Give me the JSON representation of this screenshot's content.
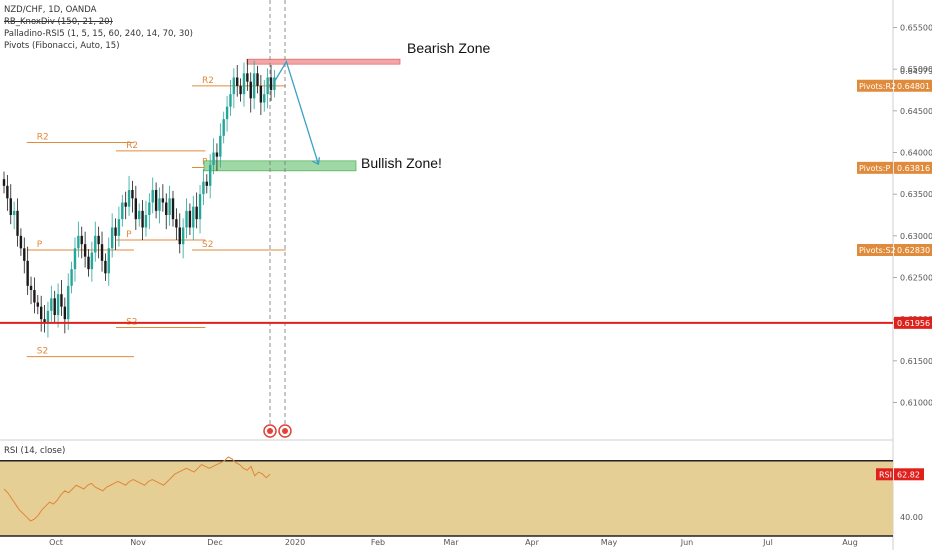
{
  "legend": {
    "symbol": "NZD/CHF, 1D, OANDA",
    "indicator1": "RB_KnoxDiv (150, 21, 20)",
    "indicator2": "Palladino-RSI5 (1, 5, 15, 60, 240, 14, 70, 30)",
    "indicator3": "Pivots (Fibonacci, Auto, 15)"
  },
  "rsi_legend": "RSI (14, close)",
  "annotations": {
    "bearish": "Bearish Zone",
    "bullish": "Bullish Zone!"
  },
  "colors": {
    "up": "#26a69a",
    "down": "#1a1a1a",
    "pivot": "#e08a3c",
    "red_line": "#e0201a",
    "arrow": "#3aa0c8",
    "bear_zone": "#f4a6a6",
    "bull_zone": "#9fd8a4",
    "rsi_band": "#e6cf95",
    "rsi_line": "#e0863a"
  },
  "chart_data": [
    {
      "type": "candlestick",
      "title": "NZD/CHF, 1D, OANDA",
      "x_ticks": [
        "Oct",
        "Nov",
        "Dec",
        "2020",
        "Feb",
        "Mar",
        "Apr",
        "May",
        "Jun",
        "Jul",
        "Aug"
      ],
      "y_ticks": [
        "0.65500",
        "0.65000",
        "0.64500",
        "0.64000",
        "0.63500",
        "0.63000",
        "0.62500",
        "0.62000",
        "0.61500",
        "0.61000"
      ],
      "ylim": [
        0.6055,
        0.6583
      ],
      "price_labels": [
        {
          "label": "0.64979",
          "value": 0.64979
        },
        {
          "label": "Pivots:R2",
          "text": "0.64801",
          "value": 0.64801
        },
        {
          "label": "Pivots:P",
          "text": "0.63816",
          "value": 0.63816
        },
        {
          "label": "Pivots:S2",
          "text": "0.62830",
          "value": 0.6283
        },
        {
          "label": "",
          "text": "0.61956",
          "value": 0.61956
        }
      ],
      "pivot_levels": [
        {
          "label": "R2",
          "value": 0.6412,
          "from": 0.03,
          "to": 0.15
        },
        {
          "label": "P",
          "value": 0.6283,
          "from": 0.03,
          "to": 0.15
        },
        {
          "label": "S2",
          "value": 0.6155,
          "from": 0.03,
          "to": 0.15
        },
        {
          "label": "R2",
          "value": 0.6402,
          "from": 0.13,
          "to": 0.23
        },
        {
          "label": "P",
          "value": 0.6295,
          "from": 0.13,
          "to": 0.23
        },
        {
          "label": "S2",
          "value": 0.619,
          "from": 0.13,
          "to": 0.23
        },
        {
          "label": "R2",
          "value": 0.648,
          "from": 0.215,
          "to": 0.32
        },
        {
          "label": "P",
          "value": 0.6382,
          "from": 0.215,
          "to": 0.32
        },
        {
          "label": "S2",
          "value": 0.6283,
          "from": 0.215,
          "to": 0.32
        }
      ],
      "horizontal_line": 0.61956,
      "bearish_zone": [
        0.6506,
        0.6512
      ],
      "bullish_zone": [
        0.6378,
        0.639
      ],
      "candles": [
        0.636,
        0.6345,
        0.6325,
        0.633,
        0.63,
        0.6285,
        0.627,
        0.624,
        0.6235,
        0.622,
        0.6215,
        0.62,
        0.6195,
        0.621,
        0.6225,
        0.6205,
        0.623,
        0.6215,
        0.62,
        0.624,
        0.626,
        0.6285,
        0.63,
        0.629,
        0.6275,
        0.626,
        0.628,
        0.63,
        0.629,
        0.627,
        0.6255,
        0.6285,
        0.631,
        0.63,
        0.632,
        0.634,
        0.6335,
        0.6355,
        0.6345,
        0.632,
        0.633,
        0.631,
        0.6325,
        0.634,
        0.6355,
        0.633,
        0.6345,
        0.634,
        0.6325,
        0.6345,
        0.632,
        0.631,
        0.629,
        0.631,
        0.633,
        0.631,
        0.6335,
        0.632,
        0.635,
        0.6365,
        0.636,
        0.6385,
        0.64,
        0.6395,
        0.642,
        0.644,
        0.6455,
        0.647,
        0.649,
        0.648,
        0.647,
        0.6495,
        0.6485,
        0.6465,
        0.6495,
        0.648,
        0.646,
        0.647,
        0.649,
        0.6475,
        0.649
      ]
    },
    {
      "type": "line",
      "title": "RSI (14, close)",
      "y_ticks": [
        "40.00"
      ],
      "current_label": "RSI",
      "current_value": "62.82",
      "values": [
        55,
        53,
        50,
        47,
        44,
        42,
        40,
        38,
        39,
        41,
        44,
        46,
        48,
        47,
        49,
        52,
        54,
        53,
        55,
        57,
        56,
        55,
        57,
        58,
        56,
        55,
        54,
        56,
        57,
        58,
        59,
        58,
        57,
        59,
        60,
        59,
        58,
        57,
        59,
        60,
        59,
        58,
        57,
        59,
        61,
        63,
        64,
        65,
        66,
        65,
        64,
        66,
        68,
        67,
        66,
        67,
        68,
        69,
        70,
        72,
        71,
        69,
        68,
        66,
        65,
        67,
        62,
        64,
        63,
        61,
        62.82
      ]
    }
  ]
}
